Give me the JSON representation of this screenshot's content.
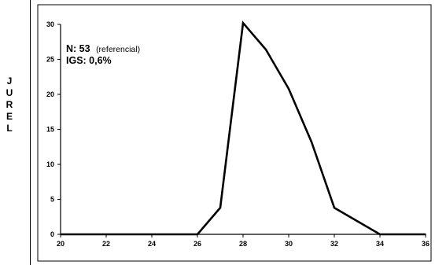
{
  "side_label": [
    "J",
    "U",
    "R",
    "E",
    "L"
  ],
  "chart_data": {
    "type": "line",
    "x": [
      20,
      21,
      22,
      23,
      24,
      25,
      26,
      27,
      28,
      29,
      30,
      31,
      32,
      33,
      34,
      35,
      36
    ],
    "series": [
      {
        "values": [
          0,
          0,
          0,
          0,
          0,
          0,
          0,
          3.8,
          30.2,
          26.4,
          20.8,
          13.2,
          3.8,
          1.9,
          0,
          0,
          0
        ]
      }
    ],
    "xlim": [
      20,
      36
    ],
    "ylim": [
      0,
      30
    ],
    "xticks": [
      20,
      22,
      24,
      26,
      28,
      30,
      32,
      34,
      36
    ],
    "yticks": [
      0,
      5,
      10,
      15,
      20,
      25,
      30
    ],
    "grid": false,
    "annotation": {
      "n_label": "N: 53",
      "n_note": "(referencial)",
      "igs_label": "IGS: 0,6%"
    },
    "line_color": "#000000"
  }
}
